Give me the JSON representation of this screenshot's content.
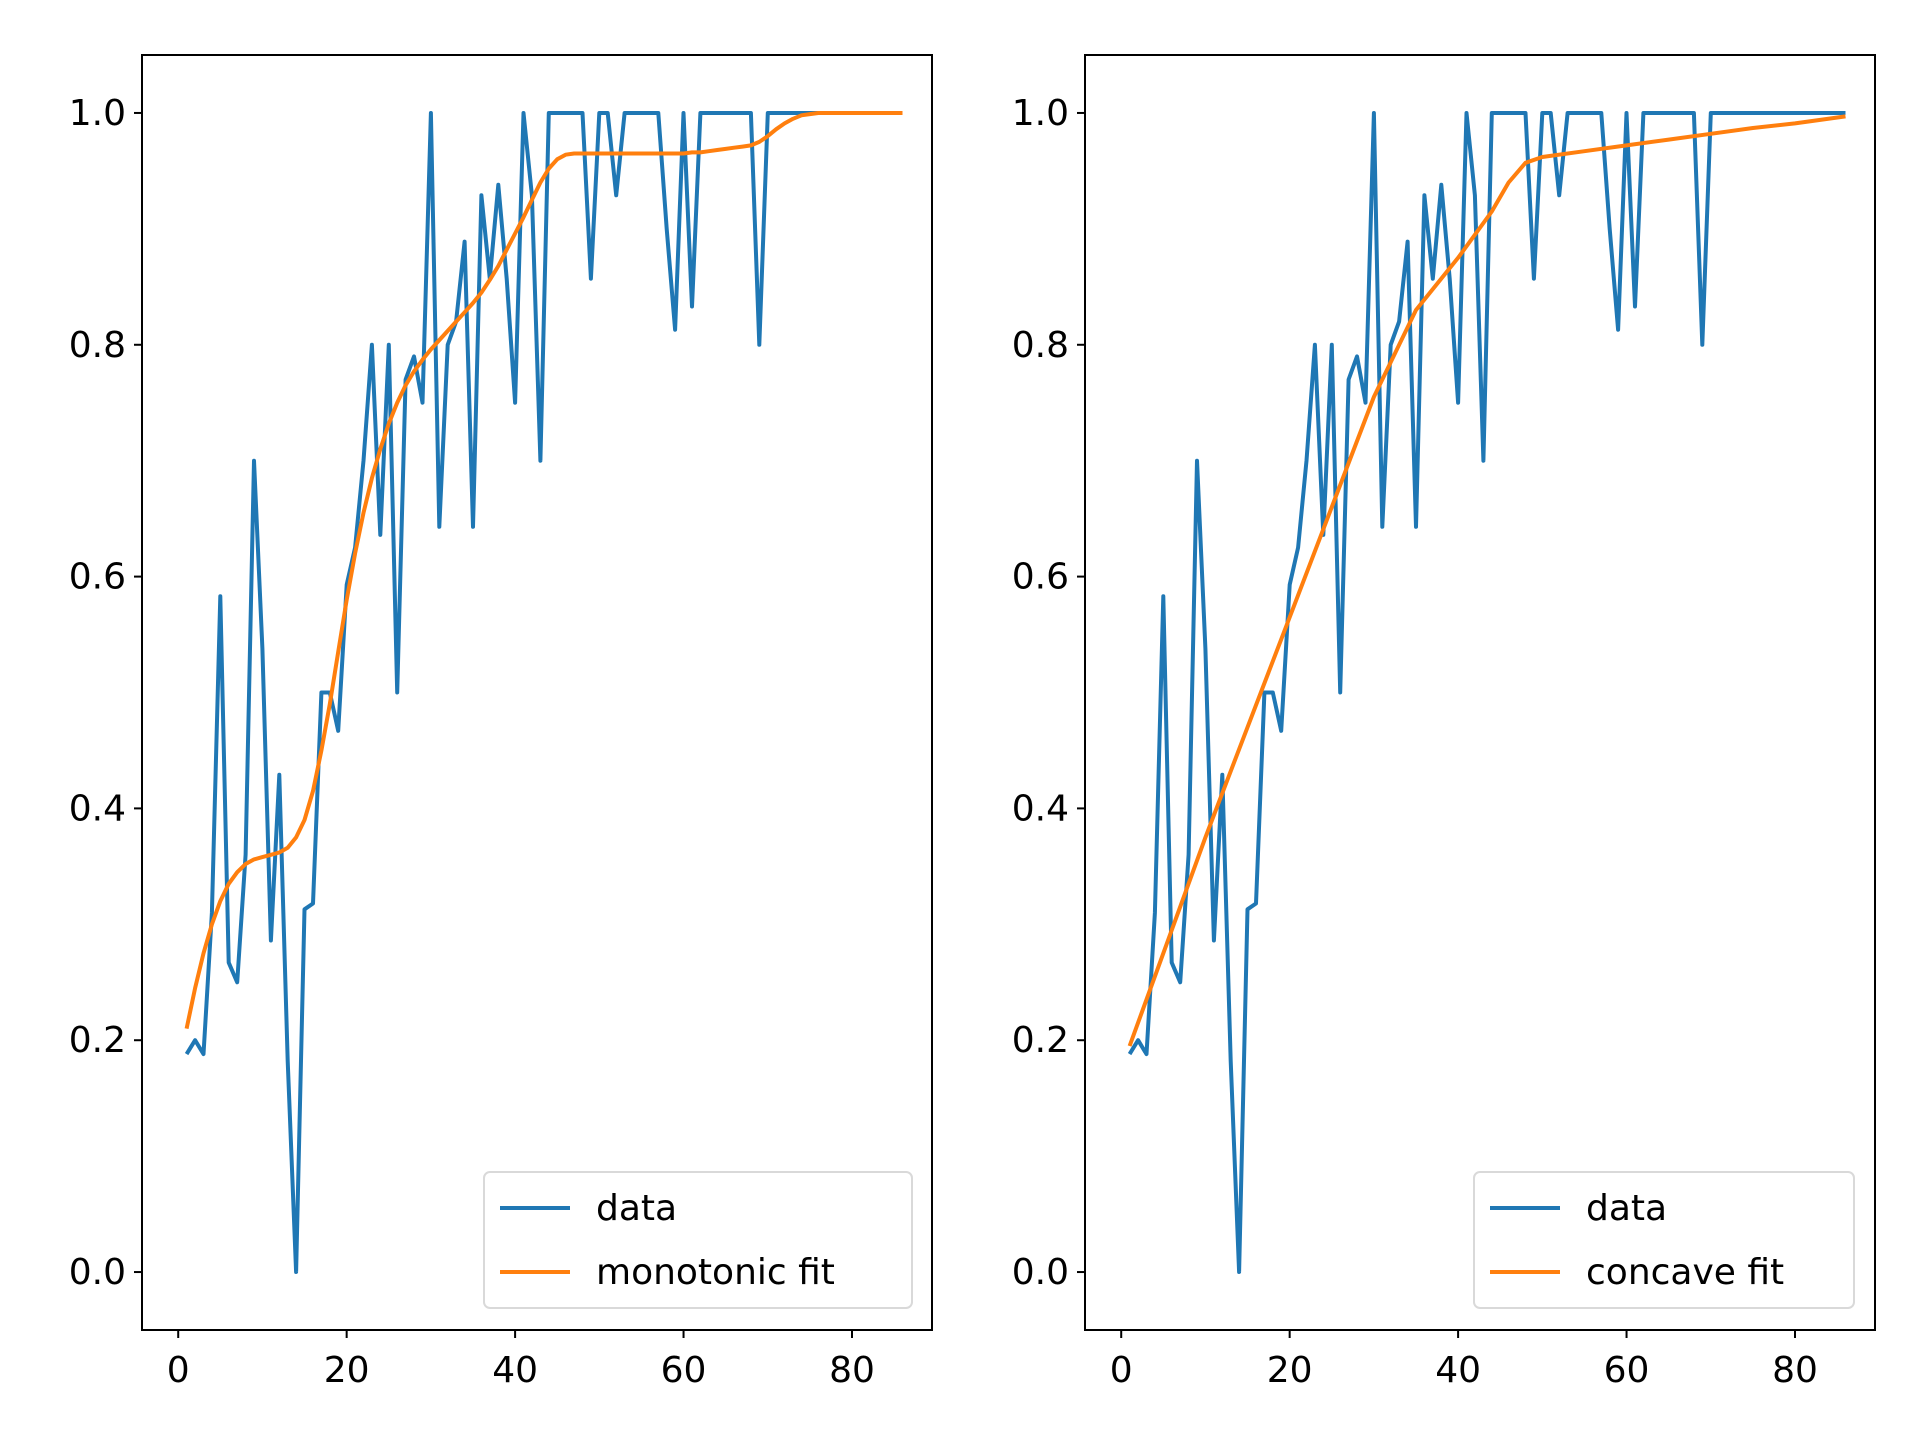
{
  "chart_data": [
    {
      "type": "line",
      "title": "",
      "xlabel": "",
      "ylabel": "",
      "xlim": [
        -4.3,
        89.5
      ],
      "ylim": [
        -0.05,
        1.05
      ],
      "xticks": [
        "0",
        "20",
        "40",
        "60",
        "80"
      ],
      "yticks": [
        "0.0",
        "0.2",
        "0.4",
        "0.6",
        "0.8",
        "1.0"
      ],
      "legend": {
        "placement": "lower-right",
        "entries": [
          "data",
          "monotonic fit"
        ]
      },
      "series": [
        {
          "name": "data",
          "color": "#1f77b4",
          "x": [
            1,
            2,
            3,
            4,
            5,
            6,
            7,
            8,
            9,
            10,
            11,
            12,
            13,
            14,
            15,
            16,
            17,
            18,
            19,
            20,
            21,
            22,
            23,
            24,
            25,
            26,
            27,
            28,
            29,
            30,
            31,
            32,
            33,
            34,
            35,
            36,
            37,
            38,
            39,
            40,
            41,
            42,
            43,
            44,
            45,
            46,
            47,
            48,
            49,
            50,
            51,
            52,
            53,
            54,
            55,
            56,
            57,
            58,
            59,
            60,
            61,
            62,
            63,
            64,
            65,
            66,
            67,
            68,
            69,
            70,
            71,
            72,
            73,
            74,
            75,
            76,
            77,
            78,
            79,
            80,
            81,
            82,
            83,
            84,
            85,
            86
          ],
          "values": [
            0.188,
            0.2,
            0.188,
            0.31,
            0.583,
            0.267,
            0.25,
            0.36,
            0.7,
            0.538,
            0.286,
            0.429,
            0.182,
            0.0,
            0.313,
            0.318,
            0.5,
            0.5,
            0.467,
            0.593,
            0.625,
            0.7,
            0.8,
            0.636,
            0.8,
            0.5,
            0.77,
            0.79,
            0.75,
            1.0,
            0.643,
            0.8,
            0.82,
            0.889,
            0.643,
            0.929,
            0.857,
            0.938,
            0.857,
            0.75,
            1.0,
            0.929,
            0.7,
            1.0,
            1.0,
            1.0,
            1.0,
            1.0,
            0.857,
            1.0,
            1.0,
            0.929,
            1.0,
            1.0,
            1.0,
            1.0,
            1.0,
            0.9,
            0.813,
            1.0,
            0.833,
            1.0,
            1.0,
            1.0,
            1.0,
            1.0,
            1.0,
            1.0,
            0.8,
            1.0,
            1.0,
            1.0,
            1.0,
            1.0,
            1.0,
            1.0,
            1.0,
            1.0,
            1.0,
            1.0,
            1.0,
            1.0,
            1.0,
            1.0,
            1.0,
            1.0
          ]
        },
        {
          "name": "monotonic fit",
          "color": "#ff7f0e",
          "x": [
            1,
            2,
            3,
            4,
            5,
            6,
            7,
            8,
            9,
            10,
            11,
            12,
            13,
            14,
            15,
            16,
            17,
            18,
            19,
            20,
            21,
            22,
            23,
            24,
            25,
            26,
            27,
            28,
            29,
            30,
            31,
            32,
            33,
            34,
            35,
            36,
            37,
            38,
            39,
            40,
            41,
            42,
            43,
            44,
            45,
            46,
            47,
            48,
            49,
            50,
            51,
            52,
            53,
            54,
            55,
            56,
            57,
            58,
            59,
            60,
            61,
            62,
            63,
            64,
            65,
            66,
            67,
            68,
            69,
            70,
            71,
            72,
            73,
            74,
            75,
            76,
            77,
            78,
            79,
            80,
            81,
            82,
            83,
            84,
            85,
            86
          ],
          "values": [
            0.21,
            0.245,
            0.275,
            0.3,
            0.32,
            0.335,
            0.345,
            0.352,
            0.356,
            0.358,
            0.36,
            0.362,
            0.366,
            0.375,
            0.39,
            0.415,
            0.45,
            0.49,
            0.535,
            0.58,
            0.62,
            0.655,
            0.685,
            0.71,
            0.732,
            0.75,
            0.765,
            0.777,
            0.787,
            0.796,
            0.804,
            0.812,
            0.82,
            0.828,
            0.836,
            0.845,
            0.856,
            0.868,
            0.882,
            0.896,
            0.91,
            0.925,
            0.94,
            0.952,
            0.96,
            0.964,
            0.965,
            0.965,
            0.965,
            0.965,
            0.965,
            0.965,
            0.965,
            0.965,
            0.965,
            0.965,
            0.965,
            0.965,
            0.965,
            0.965,
            0.966,
            0.966,
            0.967,
            0.968,
            0.969,
            0.97,
            0.971,
            0.972,
            0.975,
            0.98,
            0.986,
            0.991,
            0.995,
            0.998,
            0.999,
            1.0,
            1.0,
            1.0,
            1.0,
            1.0,
            1.0,
            1.0,
            1.0,
            1.0,
            1.0,
            1.0
          ]
        }
      ]
    },
    {
      "type": "line",
      "title": "",
      "xlabel": "",
      "ylabel": "",
      "xlim": [
        -4.3,
        89.5
      ],
      "ylim": [
        -0.05,
        1.05
      ],
      "xticks": [
        "0",
        "20",
        "40",
        "60",
        "80"
      ],
      "yticks": [
        "0.0",
        "0.2",
        "0.4",
        "0.6",
        "0.8",
        "1.0"
      ],
      "legend": {
        "placement": "lower-right",
        "entries": [
          "data",
          "concave fit"
        ]
      },
      "series": [
        {
          "name": "data",
          "color": "#1f77b4",
          "x": [
            1,
            2,
            3,
            4,
            5,
            6,
            7,
            8,
            9,
            10,
            11,
            12,
            13,
            14,
            15,
            16,
            17,
            18,
            19,
            20,
            21,
            22,
            23,
            24,
            25,
            26,
            27,
            28,
            29,
            30,
            31,
            32,
            33,
            34,
            35,
            36,
            37,
            38,
            39,
            40,
            41,
            42,
            43,
            44,
            45,
            46,
            47,
            48,
            49,
            50,
            51,
            52,
            53,
            54,
            55,
            56,
            57,
            58,
            59,
            60,
            61,
            62,
            63,
            64,
            65,
            66,
            67,
            68,
            69,
            70,
            71,
            72,
            73,
            74,
            75,
            76,
            77,
            78,
            79,
            80,
            81,
            82,
            83,
            84,
            85,
            86
          ],
          "values": [
            0.188,
            0.2,
            0.188,
            0.31,
            0.583,
            0.267,
            0.25,
            0.36,
            0.7,
            0.538,
            0.286,
            0.429,
            0.182,
            0.0,
            0.313,
            0.318,
            0.5,
            0.5,
            0.467,
            0.593,
            0.625,
            0.7,
            0.8,
            0.636,
            0.8,
            0.5,
            0.77,
            0.79,
            0.75,
            1.0,
            0.643,
            0.8,
            0.82,
            0.889,
            0.643,
            0.929,
            0.857,
            0.938,
            0.857,
            0.75,
            1.0,
            0.929,
            0.7,
            1.0,
            1.0,
            1.0,
            1.0,
            1.0,
            0.857,
            1.0,
            1.0,
            0.929,
            1.0,
            1.0,
            1.0,
            1.0,
            1.0,
            0.9,
            0.813,
            1.0,
            0.833,
            1.0,
            1.0,
            1.0,
            1.0,
            1.0,
            1.0,
            1.0,
            0.8,
            1.0,
            1.0,
            1.0,
            1.0,
            1.0,
            1.0,
            1.0,
            1.0,
            1.0,
            1.0,
            1.0,
            1.0,
            1.0,
            1.0,
            1.0,
            1.0,
            1.0
          ]
        },
        {
          "name": "concave fit",
          "color": "#ff7f0e",
          "x": [
            1,
            5,
            10,
            15,
            20,
            25,
            30,
            35,
            40,
            44,
            46,
            48,
            50,
            55,
            60,
            65,
            70,
            75,
            80,
            86
          ],
          "values": [
            0.195,
            0.275,
            0.375,
            0.47,
            0.565,
            0.66,
            0.755,
            0.83,
            0.875,
            0.915,
            0.94,
            0.957,
            0.962,
            0.967,
            0.972,
            0.977,
            0.982,
            0.987,
            0.991,
            0.997
          ]
        }
      ]
    }
  ]
}
